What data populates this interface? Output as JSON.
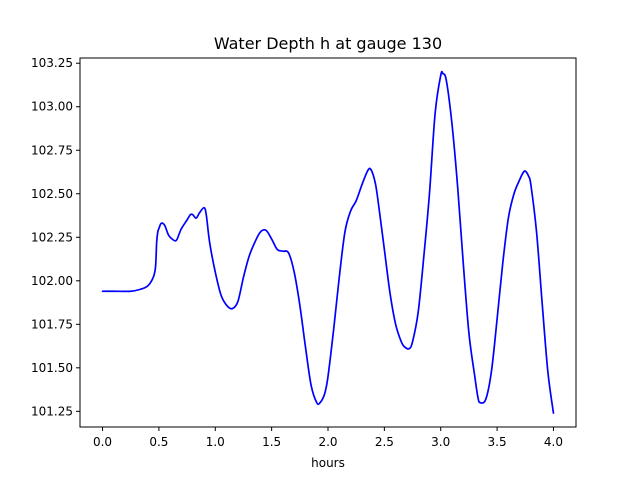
{
  "chart_data": {
    "type": "line",
    "title": "Water Depth h at gauge 130",
    "xlabel": "hours",
    "ylabel": "",
    "xlim": [
      -0.2,
      4.2
    ],
    "ylim": [
      101.16,
      103.28
    ],
    "grid": false,
    "x_ticks": [
      0.0,
      0.5,
      1.0,
      1.5,
      2.0,
      2.5,
      3.0,
      3.5,
      4.0
    ],
    "x_tick_labels": [
      "0.0",
      "0.5",
      "1.0",
      "1.5",
      "2.0",
      "2.5",
      "3.0",
      "3.5",
      "4.0"
    ],
    "y_ticks": [
      101.25,
      101.5,
      101.75,
      102.0,
      102.25,
      102.5,
      102.75,
      103.0,
      103.25
    ],
    "y_tick_labels": [
      "101.25",
      "101.50",
      "101.75",
      "102.00",
      "102.25",
      "102.50",
      "102.75",
      "103.00",
      "103.25"
    ],
    "series": [
      {
        "color": "#0000ff",
        "x": [
          0.0,
          0.1,
          0.25,
          0.33,
          0.4,
          0.45,
          0.47,
          0.48,
          0.49,
          0.5,
          0.52,
          0.55,
          0.58,
          0.6,
          0.65,
          0.68,
          0.7,
          0.75,
          0.78,
          0.8,
          0.83,
          0.86,
          0.9,
          0.92,
          0.95,
          1.0,
          1.05,
          1.1,
          1.15,
          1.2,
          1.25,
          1.3,
          1.35,
          1.4,
          1.45,
          1.5,
          1.55,
          1.6,
          1.65,
          1.7,
          1.75,
          1.8,
          1.85,
          1.9,
          1.93,
          1.97,
          2.0,
          2.05,
          2.1,
          2.15,
          2.2,
          2.25,
          2.3,
          2.35,
          2.38,
          2.42,
          2.45,
          2.5,
          2.55,
          2.6,
          2.65,
          2.68,
          2.72,
          2.75,
          2.8,
          2.85,
          2.9,
          2.95,
          3.0,
          3.02,
          3.05,
          3.1,
          3.15,
          3.2,
          3.25,
          3.3,
          3.33,
          3.35,
          3.4,
          3.45,
          3.5,
          3.55,
          3.6,
          3.65,
          3.7,
          3.73,
          3.75,
          3.78,
          3.8,
          3.85,
          3.9,
          3.95,
          4.0
        ],
        "y": [
          101.94,
          101.94,
          101.94,
          101.95,
          101.97,
          102.02,
          102.08,
          102.22,
          102.28,
          102.3,
          102.33,
          102.32,
          102.27,
          102.25,
          102.23,
          102.27,
          102.3,
          102.35,
          102.38,
          102.38,
          102.36,
          102.39,
          102.42,
          102.38,
          102.22,
          102.05,
          101.92,
          101.86,
          101.84,
          101.88,
          102.02,
          102.14,
          102.22,
          102.28,
          102.29,
          102.24,
          102.18,
          102.17,
          102.16,
          102.05,
          101.86,
          101.62,
          101.4,
          101.3,
          101.3,
          101.35,
          101.45,
          101.72,
          102.02,
          102.28,
          102.4,
          102.46,
          102.55,
          102.63,
          102.64,
          102.56,
          102.43,
          102.18,
          101.93,
          101.75,
          101.65,
          101.62,
          101.61,
          101.65,
          101.82,
          102.14,
          102.5,
          102.96,
          103.18,
          103.19,
          103.15,
          102.9,
          102.54,
          102.1,
          101.7,
          101.46,
          101.33,
          101.3,
          101.32,
          101.48,
          101.78,
          102.1,
          102.36,
          102.5,
          102.58,
          102.62,
          102.63,
          102.6,
          102.55,
          102.28,
          101.87,
          101.48,
          101.24
        ]
      }
    ]
  }
}
